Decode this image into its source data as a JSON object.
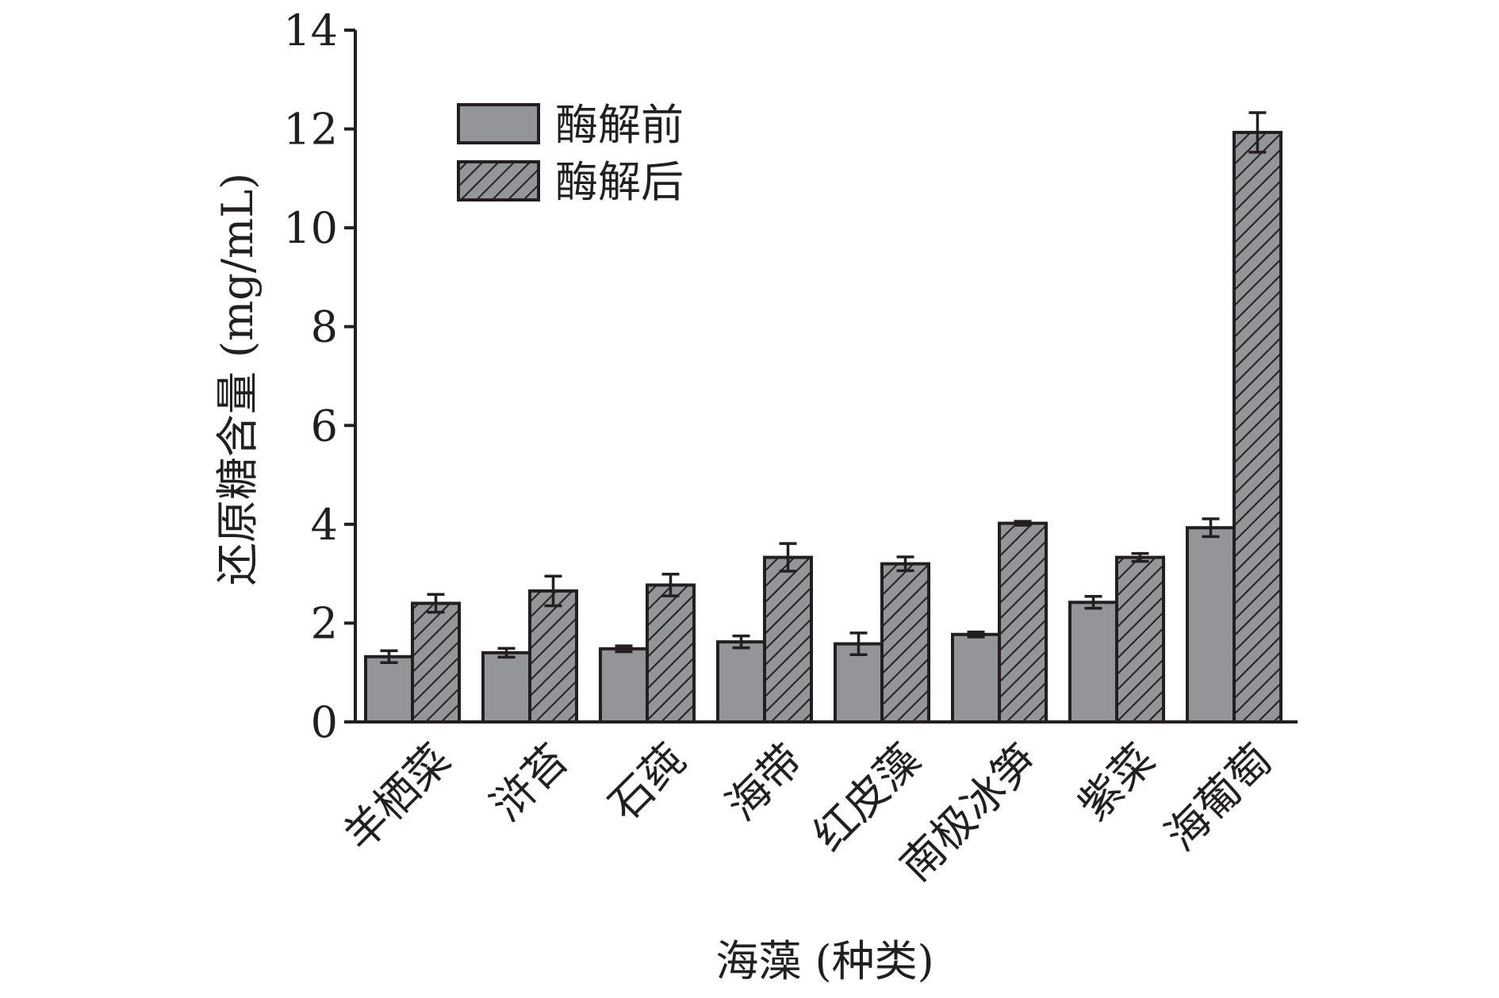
{
  "chart_data": {
    "type": "bar",
    "title": "",
    "xlabel": "海藻 (种类)",
    "ylabel": "还原糖含量 (mg/mL)",
    "ylim": [
      0,
      14
    ],
    "yticks": [
      0,
      2,
      4,
      6,
      8,
      10,
      12,
      14
    ],
    "grid": false,
    "legend_position": "top-left",
    "categories": [
      "羊栖菜",
      "浒苔",
      "石莼",
      "海带",
      "红皮藻",
      "南极冰笋",
      "紫菜",
      "海葡萄"
    ],
    "series": [
      {
        "name": "酶解前",
        "style": "solid",
        "color": "#939598",
        "values": [
          1.32,
          1.4,
          1.48,
          1.62,
          1.58,
          1.77,
          2.42,
          3.93
        ],
        "errors": [
          0.12,
          0.09,
          0.06,
          0.12,
          0.22,
          0.05,
          0.12,
          0.18
        ]
      },
      {
        "name": "酶解后",
        "style": "hatched",
        "color": "#939598",
        "values": [
          2.4,
          2.65,
          2.77,
          3.33,
          3.2,
          4.02,
          3.33,
          11.93
        ],
        "errors": [
          0.18,
          0.3,
          0.22,
          0.28,
          0.14,
          0.04,
          0.08,
          0.4
        ]
      }
    ]
  }
}
